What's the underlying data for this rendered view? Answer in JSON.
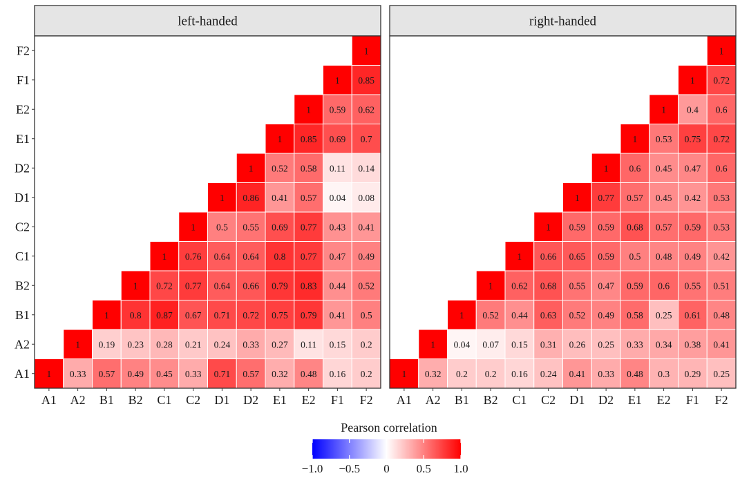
{
  "chart_data": {
    "type": "heatmap",
    "variables": [
      "A1",
      "A2",
      "B1",
      "B2",
      "C1",
      "C2",
      "D1",
      "D2",
      "E1",
      "E2",
      "F1",
      "F2"
    ],
    "panels": [
      {
        "title": "left-handed",
        "matrix": [
          [
            1,
            0.33,
            0.57,
            0.49,
            0.45,
            0.33,
            0.71,
            0.57,
            0.32,
            0.48,
            0.16,
            0.2
          ],
          [
            0.33,
            1,
            0.19,
            0.23,
            0.28,
            0.21,
            0.24,
            0.33,
            0.27,
            0.11,
            0.15,
            0.2
          ],
          [
            0.57,
            0.19,
            1,
            0.8,
            0.87,
            0.67,
            0.71,
            0.72,
            0.75,
            0.79,
            0.41,
            0.5
          ],
          [
            0.49,
            0.23,
            0.8,
            1,
            0.72,
            0.77,
            0.64,
            0.66,
            0.79,
            0.83,
            0.44,
            0.52
          ],
          [
            0.45,
            0.28,
            0.87,
            0.72,
            1,
            0.76,
            0.64,
            0.64,
            0.8,
            0.77,
            0.47,
            0.49
          ],
          [
            0.33,
            0.21,
            0.67,
            0.77,
            0.76,
            1,
            0.5,
            0.55,
            0.69,
            0.77,
            0.43,
            0.41
          ],
          [
            0.71,
            0.24,
            0.71,
            0.64,
            0.64,
            0.5,
            1,
            0.86,
            0.41,
            0.57,
            0.04,
            0.08
          ],
          [
            0.57,
            0.33,
            0.72,
            0.66,
            0.64,
            0.55,
            0.86,
            1,
            0.52,
            0.58,
            0.11,
            0.14
          ],
          [
            0.32,
            0.27,
            0.75,
            0.79,
            0.8,
            0.69,
            0.41,
            0.52,
            1,
            0.85,
            0.69,
            0.7
          ],
          [
            0.48,
            0.11,
            0.79,
            0.83,
            0.77,
            0.77,
            0.57,
            0.58,
            0.85,
            1,
            0.59,
            0.62
          ],
          [
            0.16,
            0.15,
            0.41,
            0.44,
            0.47,
            0.43,
            0.04,
            0.11,
            0.69,
            0.59,
            1,
            0.85
          ],
          [
            0.2,
            0.2,
            0.5,
            0.52,
            0.49,
            0.41,
            0.08,
            0.14,
            0.7,
            0.62,
            0.85,
            1
          ]
        ]
      },
      {
        "title": "right-handed",
        "matrix": [
          [
            1,
            0.32,
            0.2,
            0.2,
            0.16,
            0.24,
            0.41,
            0.33,
            0.48,
            0.3,
            0.29,
            0.25
          ],
          [
            0.32,
            1,
            0.04,
            0.07,
            0.15,
            0.31,
            0.26,
            0.25,
            0.33,
            0.34,
            0.38,
            0.41
          ],
          [
            0.2,
            0.04,
            1,
            0.52,
            0.44,
            0.63,
            0.52,
            0.49,
            0.58,
            0.25,
            0.61,
            0.48
          ],
          [
            0.2,
            0.07,
            0.52,
            1,
            0.62,
            0.68,
            0.55,
            0.47,
            0.59,
            0.6,
            0.55,
            0.51
          ],
          [
            0.16,
            0.15,
            0.44,
            0.62,
            1,
            0.66,
            0.65,
            0.59,
            0.5,
            0.48,
            0.49,
            0.42
          ],
          [
            0.24,
            0.31,
            0.63,
            0.68,
            0.66,
            1,
            0.59,
            0.59,
            0.68,
            0.57,
            0.59,
            0.53
          ],
          [
            0.41,
            0.26,
            0.52,
            0.55,
            0.65,
            0.59,
            1,
            0.77,
            0.57,
            0.45,
            0.42,
            0.53
          ],
          [
            0.33,
            0.25,
            0.49,
            0.47,
            0.59,
            0.59,
            0.77,
            1,
            0.6,
            0.45,
            0.47,
            0.6
          ],
          [
            0.48,
            0.33,
            0.58,
            0.59,
            0.5,
            0.68,
            0.57,
            0.6,
            1,
            0.53,
            0.75,
            0.72
          ],
          [
            0.3,
            0.34,
            0.25,
            0.6,
            0.48,
            0.57,
            0.45,
            0.45,
            0.53,
            1,
            0.4,
            0.6
          ],
          [
            0.29,
            0.38,
            0.61,
            0.55,
            0.49,
            0.59,
            0.42,
            0.47,
            0.75,
            0.4,
            1,
            0.72
          ],
          [
            0.25,
            0.41,
            0.48,
            0.51,
            0.42,
            0.53,
            0.53,
            0.6,
            0.72,
            0.6,
            0.72,
            1
          ]
        ]
      }
    ],
    "legend": {
      "title": "Pearson correlation",
      "ticks": [
        "−1.0",
        "−0.5",
        "0",
        "0.5",
        "1.0"
      ],
      "tick_values": [
        -1,
        -0.5,
        0,
        0.5,
        1
      ],
      "range": [
        -1,
        1
      ],
      "colors": {
        "low": "#0000ff",
        "mid": "#ffffff",
        "high": "#ff0000"
      },
      "placement": "bottom"
    },
    "cell_display": "upper triangle including diagonal; value labels",
    "strip_fill": "#e5e5e5"
  }
}
